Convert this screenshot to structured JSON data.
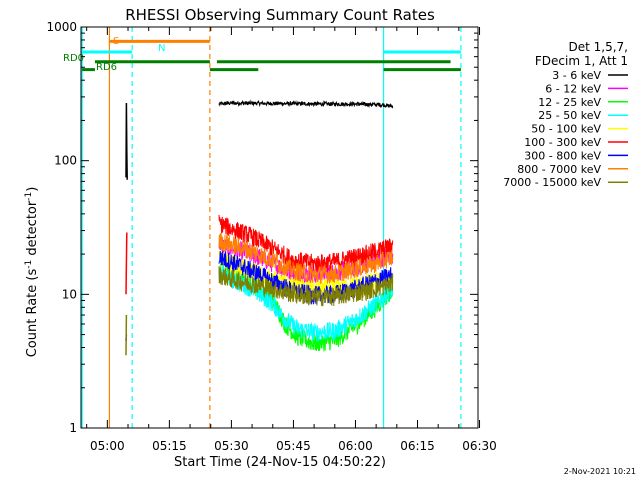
{
  "chart_data": {
    "type": "line",
    "title": "RHESSI Observing Summary Count Rates",
    "xlabel": "Start Time (24-Nov-15 04:50:22)",
    "ylabel_main": "Count Rate (s",
    "ylabel_sup1": "-1",
    "ylabel_mid": " detector",
    "ylabel_sup2": "-1",
    "ylabel_end": ")",
    "yscale": "log",
    "xlim_minutes": [
      -6.37,
      89.63
    ],
    "ylim": [
      1,
      1000
    ],
    "x_ticks": [
      {
        "label": "05:00",
        "minutes": 0
      },
      {
        "label": "05:15",
        "minutes": 15
      },
      {
        "label": "05:30",
        "minutes": 30
      },
      {
        "label": "05:45",
        "minutes": 45
      },
      {
        "label": "06:00",
        "minutes": 60
      },
      {
        "label": "06:15",
        "minutes": 75
      },
      {
        "label": "06:30",
        "minutes": 90
      }
    ],
    "y_ticks": [
      {
        "label": "1",
        "value": 1
      },
      {
        "label": "10",
        "value": 10
      },
      {
        "label": "100",
        "value": 100
      },
      {
        "label": "1000",
        "value": 1000
      }
    ],
    "legend": {
      "position": "top-right",
      "header": [
        "Det 1,5,7,",
        "FDecim 1, Att 1"
      ]
    },
    "series": [
      {
        "name": "3 - 6 keV",
        "color": "#000000",
        "segments": [
          {
            "x": [
              4.5,
              4.6,
              4.7,
              4.8
            ],
            "y": [
              75,
              270,
              120,
              72
            ]
          },
          {
            "x": [
              27.0,
              30,
              40,
              50,
              60,
              66.5,
              69.0
            ],
            "y": [
              265,
              270,
              268,
              266,
              265,
              262,
              255
            ]
          }
        ]
      },
      {
        "name": "6 - 12 keV",
        "color": "#ff00ff",
        "segments": [
          {
            "x": [
              27.0,
              30,
              35,
              40,
              45,
              50,
              55,
              60,
              65,
              69.0
            ],
            "y": [
              24,
              22,
              20,
              17,
              14.5,
              14,
              14.5,
              16,
              18,
              20
            ]
          }
        ]
      },
      {
        "name": "12 - 25 keV",
        "color": "#00ff00",
        "segments": [
          {
            "x": [
              27.0,
              30,
              35,
              40,
              43,
              46,
              50,
              55,
              60,
              65,
              69.0
            ],
            "y": [
              16,
              14,
              12,
              9,
              6,
              4.8,
              4.3,
              4.5,
              5.8,
              8,
              11
            ]
          }
        ]
      },
      {
        "name": "25 - 50 keV",
        "color": "#00ffff",
        "segments": [
          {
            "x": [
              27.0,
              30,
              35,
              40,
              43,
              46,
              50,
              55,
              60,
              65,
              69.0
            ],
            "y": [
              15,
              13,
              11,
              8.5,
              6.5,
              5.5,
              5.2,
              5.3,
              6.5,
              8.5,
              11
            ]
          }
        ]
      },
      {
        "name": "50 - 100 keV",
        "color": "#ffff00",
        "segments": [
          {
            "x": [
              27.0,
              30,
              35,
              40,
              45,
              50,
              55,
              60,
              65,
              69.0
            ],
            "y": [
              18,
              17,
              15,
              13,
              11.5,
              11,
              11.2,
              11.8,
              12.5,
              13
            ]
          }
        ]
      },
      {
        "name": "100 - 300 keV",
        "color": "#ff0000",
        "segments": [
          {
            "x": [
              4.5,
              4.7
            ],
            "y": [
              10,
              29
            ]
          },
          {
            "x": [
              27.0,
              30,
              35,
              40,
              45,
              50,
              55,
              60,
              65,
              69.0
            ],
            "y": [
              34,
              31,
              27,
              22,
              18,
              17,
              17.5,
              19,
              21,
              23
            ]
          }
        ]
      },
      {
        "name": "300 - 800 keV",
        "color": "#0000ff",
        "segments": [
          {
            "x": [
              4.5,
              4.6
            ],
            "y": [
              4.5,
              5
            ]
          },
          {
            "x": [
              27.0,
              30,
              35,
              40,
              45,
              50,
              55,
              60,
              65,
              69.0
            ],
            "y": [
              19,
              17.5,
              15,
              12.5,
              10.5,
              9.8,
              10,
              11,
              12.5,
              14
            ]
          }
        ]
      },
      {
        "name": "800 - 7000 keV",
        "color": "#ff8000",
        "segments": [
          {
            "x": [
              27.0,
              30,
              35,
              40,
              45,
              50,
              55,
              60,
              65,
              69.0
            ],
            "y": [
              25,
              23.5,
              21,
              18,
              15,
              14,
              14.2,
              15.5,
              17,
              19
            ]
          }
        ]
      },
      {
        "name": "7000 - 15000 keV",
        "color": "#808000",
        "segments": [
          {
            "x": [
              4.5,
              4.6
            ],
            "y": [
              3.5,
              7
            ]
          },
          {
            "x": [
              27.0,
              30,
              35,
              40,
              45,
              50,
              55,
              60,
              65,
              69.0
            ],
            "y": [
              14,
              13,
              12,
              11,
              10,
              9.5,
              9.6,
              10.2,
              11,
              12
            ]
          }
        ]
      }
    ],
    "vlines": [
      {
        "minutes": -6.1,
        "color": "#00ffff",
        "style": "solid"
      },
      {
        "minutes": 0.5,
        "color": "#ff8000",
        "style": "solid"
      },
      {
        "minutes": 6.0,
        "color": "#00ffff",
        "style": "dashed"
      },
      {
        "minutes": 24.8,
        "color": "#ff8000",
        "style": "dashed"
      },
      {
        "minutes": 66.8,
        "color": "#00ffff",
        "style": "solid"
      },
      {
        "minutes": 85.5,
        "color": "#00ffff",
        "style": "dashed"
      }
    ],
    "status_flags": [
      {
        "label": "S",
        "color": "#ff8000",
        "y": 780,
        "segments": [
          [
            0.5,
            24.8
          ]
        ]
      },
      {
        "label": "N",
        "color": "#00ffff",
        "y": 650,
        "segments": [
          [
            -6.1,
            6.0
          ],
          [
            66.8,
            85.5
          ]
        ]
      },
      {
        "label": "RD0",
        "color": "#008000",
        "y": 550,
        "segments": [
          [
            -3.0,
            24.8
          ],
          [
            26.5,
            83.0
          ]
        ]
      },
      {
        "label": "RD6",
        "color": "#008000",
        "y": 480,
        "segments": [
          [
            -6.1,
            -3.0
          ],
          [
            24.8,
            36.5
          ],
          [
            66.8,
            85.5
          ]
        ]
      }
    ],
    "gaps": [
      [
        36.5,
        37.8
      ]
    ]
  },
  "footer": {
    "date": "2-Nov-2021 10:21"
  }
}
